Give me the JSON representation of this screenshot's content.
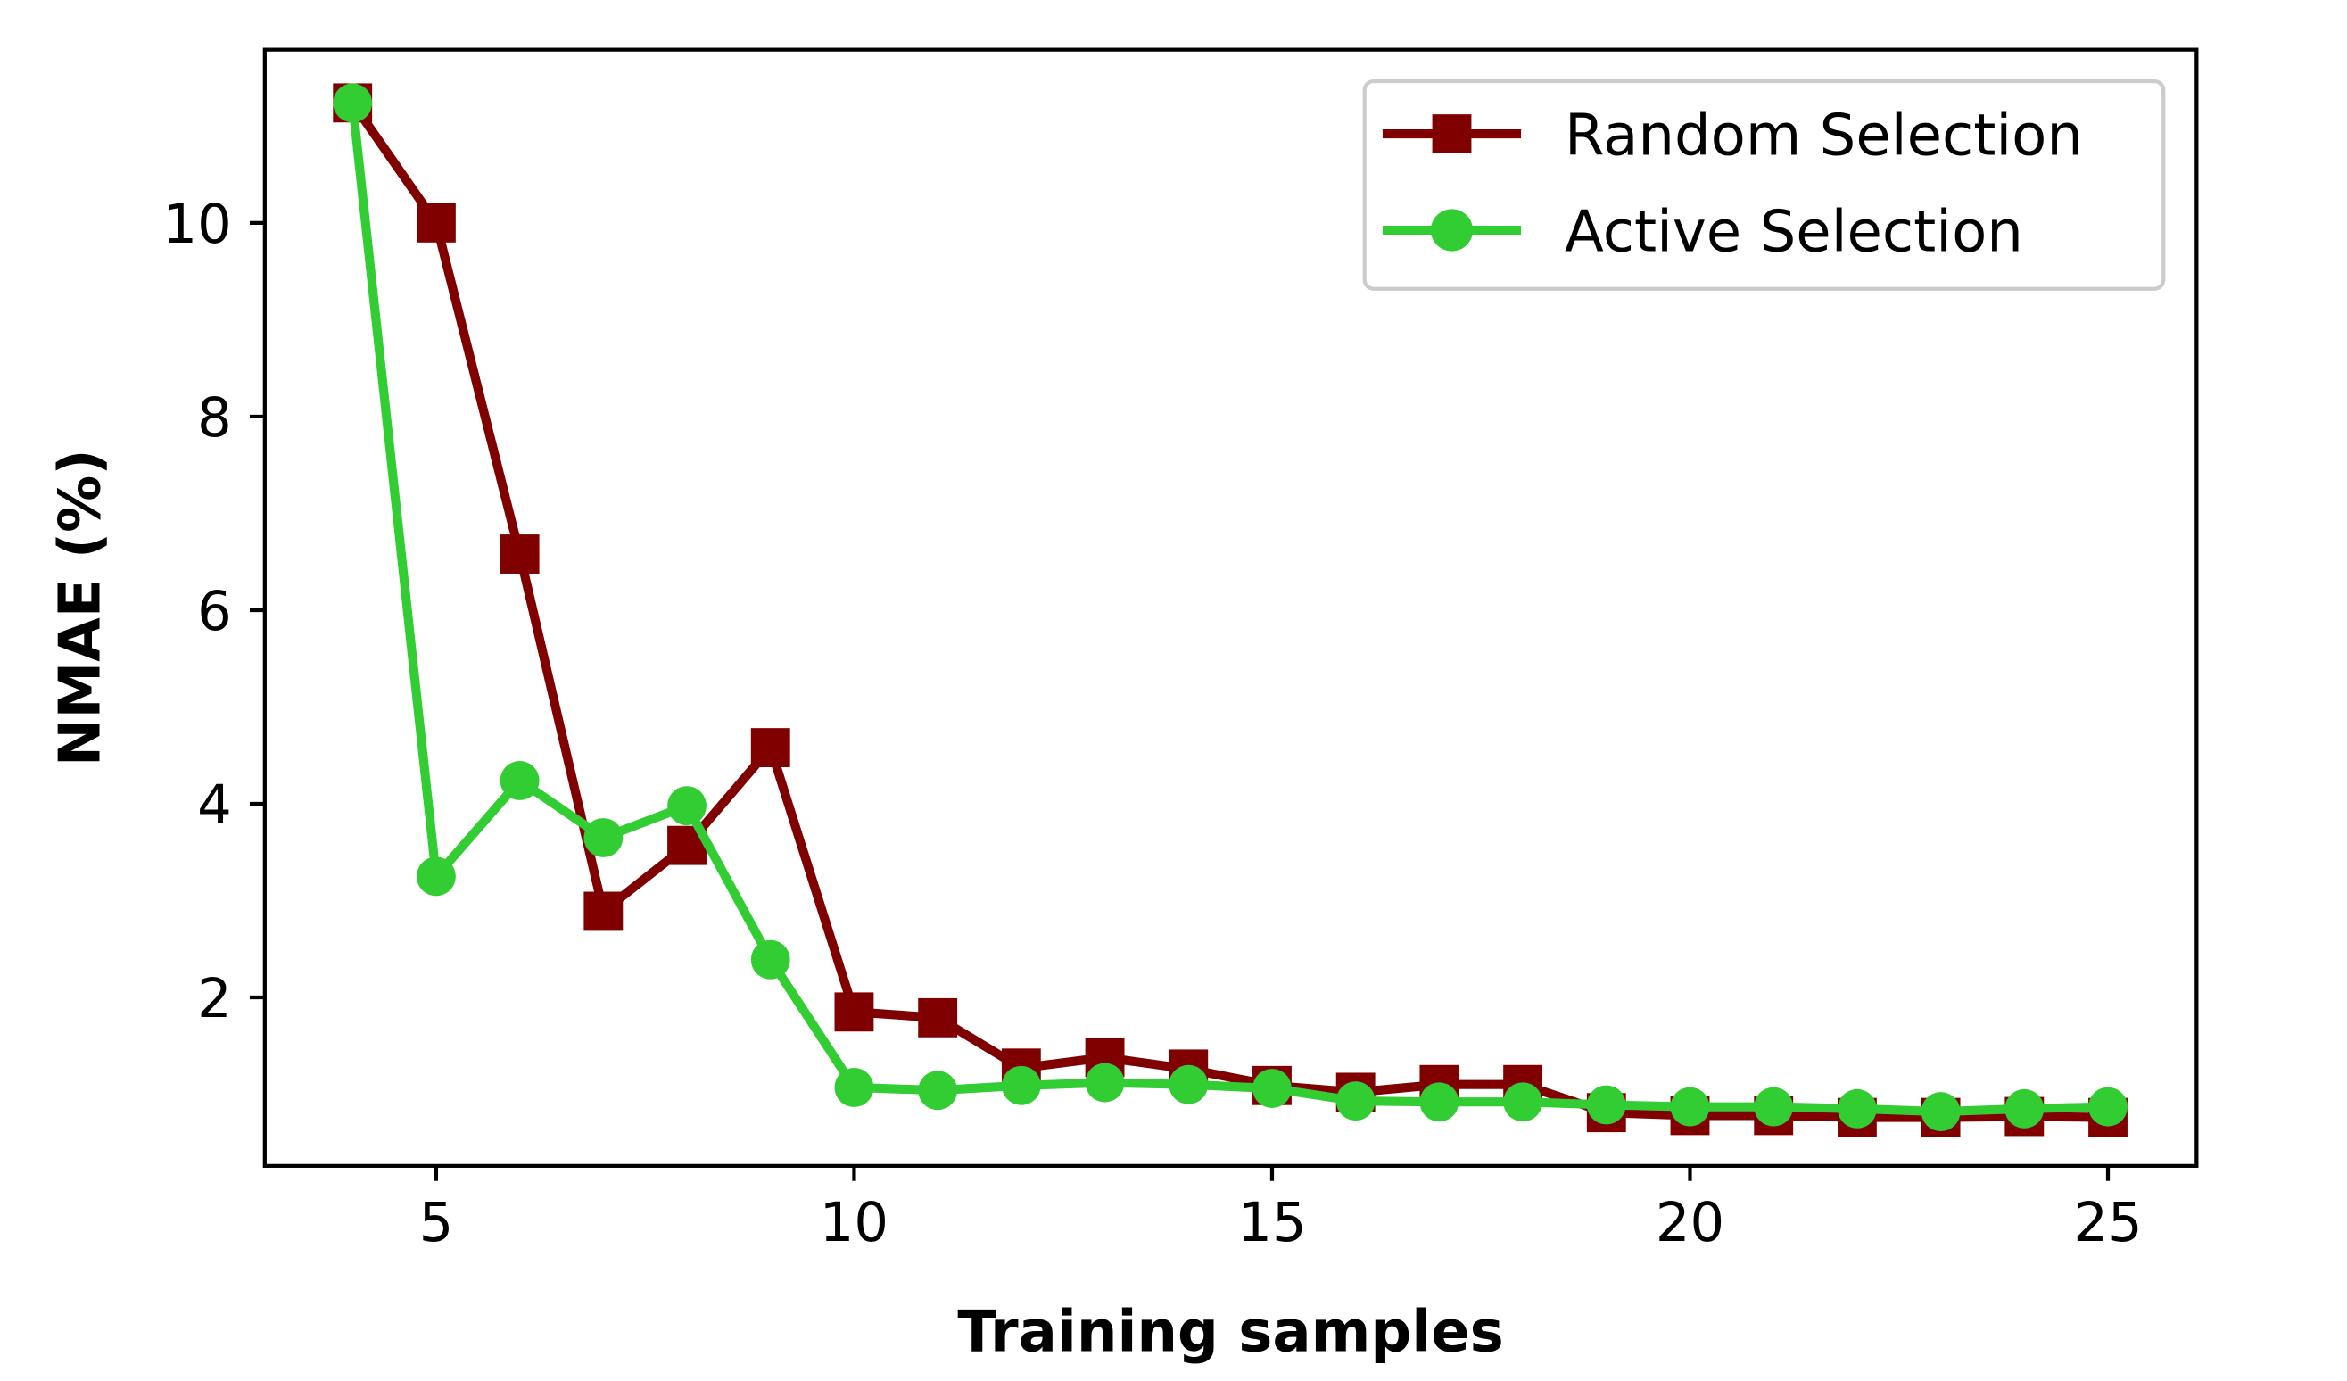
{
  "chart_data": {
    "type": "line",
    "title": "",
    "xlabel": "Training samples",
    "ylabel": "NMAE (%)",
    "xlim": [
      2.95,
      26.06
    ],
    "ylim": [
      0.26,
      11.79
    ],
    "xticks": [
      5,
      10,
      15,
      20,
      25
    ],
    "yticks": [
      2,
      4,
      6,
      8,
      10
    ],
    "grid": false,
    "legend_position": "top-right",
    "x": [
      4,
      5,
      6,
      7,
      8,
      9,
      10,
      11,
      12,
      13,
      14,
      15,
      16,
      17,
      18,
      19,
      20,
      21,
      22,
      23,
      24,
      25
    ],
    "series": [
      {
        "name": "Random Selection",
        "color": "#800000",
        "marker": "square",
        "values": [
          11.24,
          10.0,
          6.58,
          2.89,
          3.57,
          4.58,
          1.85,
          1.79,
          1.27,
          1.38,
          1.26,
          1.09,
          1.02,
          1.1,
          1.1,
          0.81,
          0.78,
          0.78,
          0.76,
          0.76,
          0.77,
          0.76
        ]
      },
      {
        "name": "Active Selection",
        "color": "#32cd32",
        "marker": "circle",
        "values": [
          11.24,
          3.25,
          4.24,
          3.65,
          3.98,
          2.39,
          1.07,
          1.04,
          1.09,
          1.12,
          1.1,
          1.06,
          0.93,
          0.92,
          0.92,
          0.89,
          0.87,
          0.87,
          0.85,
          0.82,
          0.85,
          0.87
        ]
      }
    ]
  }
}
